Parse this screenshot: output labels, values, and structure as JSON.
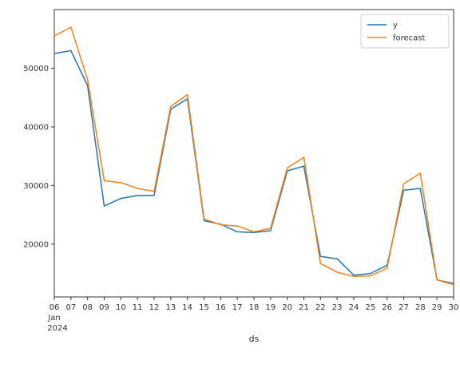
{
  "chart_data": {
    "type": "line",
    "title": "",
    "xlabel": "ds",
    "ylabel": "",
    "x": [
      "06",
      "07",
      "08",
      "09",
      "10",
      "11",
      "12",
      "13",
      "14",
      "15",
      "16",
      "17",
      "18",
      "19",
      "20",
      "21",
      "22",
      "23",
      "24",
      "25",
      "26",
      "27",
      "28",
      "29",
      "30"
    ],
    "x_sub": [
      "Jan",
      "2024"
    ],
    "yticks": [
      20000,
      30000,
      40000,
      50000
    ],
    "ylim": [
      11000,
      60000
    ],
    "grid": false,
    "legend_position": "top-right",
    "series": [
      {
        "name": "y",
        "color": "#1f77b4",
        "values": [
          52500,
          53000,
          47000,
          26500,
          27800,
          28300,
          28300,
          43000,
          44800,
          24000,
          23400,
          22100,
          22000,
          22300,
          32500,
          33300,
          17900,
          17500,
          14700,
          15000,
          16400,
          29200,
          29500,
          13900,
          13300
        ]
      },
      {
        "name": "forecast",
        "color": "#ff7f0e",
        "values": [
          55500,
          57000,
          48000,
          30800,
          30500,
          29500,
          29000,
          43500,
          45500,
          24300,
          23300,
          23100,
          22100,
          22700,
          33000,
          34800,
          16700,
          15200,
          14500,
          14600,
          15900,
          30300,
          32100,
          13900,
          13100
        ]
      }
    ]
  }
}
